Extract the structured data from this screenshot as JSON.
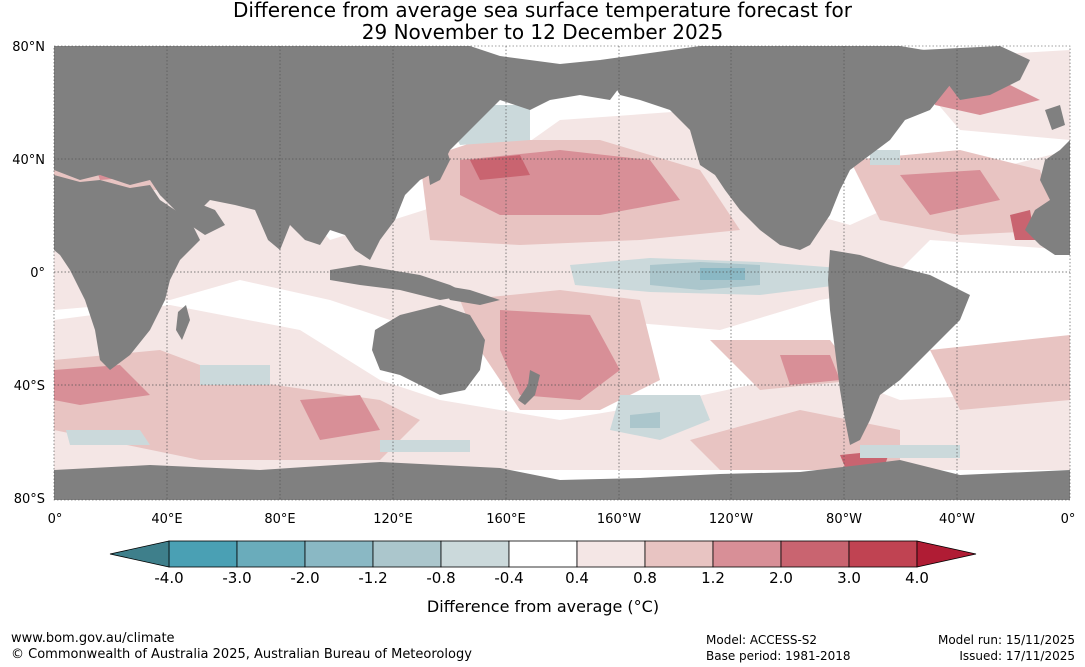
{
  "title": {
    "line1": "Difference from average sea surface temperature forecast for",
    "line2": "29 November to 12 December 2025"
  },
  "map": {
    "lat_labels": [
      "80°N",
      "40°N",
      "0°",
      "40°S",
      "80°S"
    ],
    "lon_labels": [
      "0°",
      "40°E",
      "80°E",
      "120°E",
      "160°E",
      "160°W",
      "120°W",
      "80°W",
      "40°W",
      "0°"
    ],
    "land_color": "#808080",
    "ocean_color": "#ffffff"
  },
  "legend": {
    "title": "Difference from average (°C)",
    "tick_labels": [
      "-4.0",
      "-3.0",
      "-2.0",
      "-1.2",
      "-0.8",
      "-0.4",
      "0.4",
      "0.8",
      "1.2",
      "2.0",
      "3.0",
      "4.0"
    ],
    "under_color": "#3e7f8b",
    "over_color": "#b01c34",
    "bin_colors": [
      "#4aa0b4",
      "#6aacbb",
      "#8ab8c4",
      "#abc6cc",
      "#cbd9db",
      "#ffffff",
      "#f4e6e5",
      "#e8c4c2",
      "#d88f97",
      "#c96470",
      "#c04352"
    ]
  },
  "footer": {
    "website": "www.bom.gov.au/climate",
    "copyright": "© Commonwealth of Australia 2025, Australian Bureau of Meteorology",
    "model": "Model: ACCESS-S2",
    "base_period": "Base period: 1981-2018",
    "model_run": "Model run: 15/11/2025",
    "issued": "Issued: 17/11/2025"
  }
}
